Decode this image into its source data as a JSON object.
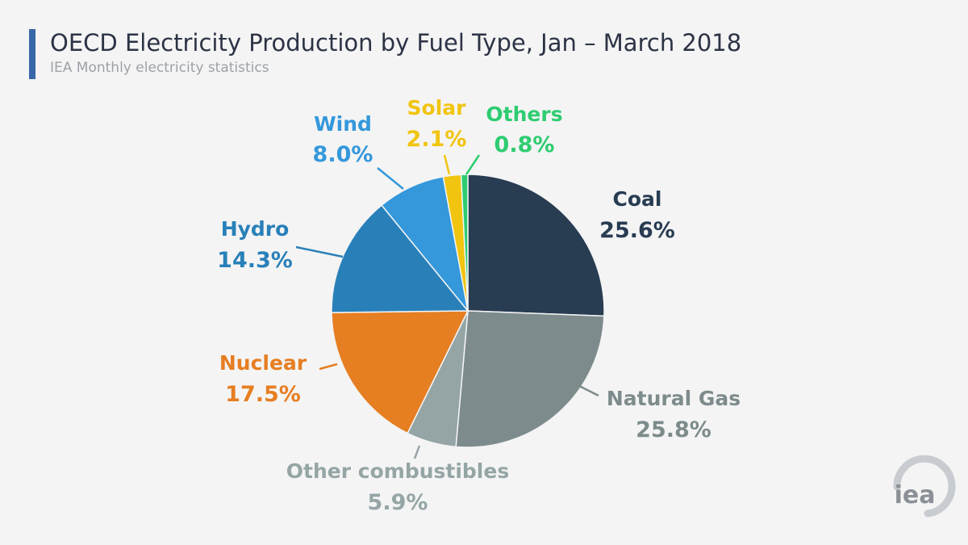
{
  "header": {
    "title": "OECD Electricity Production by Fuel Type, Jan – March 2018",
    "subtitle": "IEA Monthly electricity statistics"
  },
  "logo": {
    "text": "iea",
    "color": "#8a9096"
  },
  "chart_data": {
    "type": "pie",
    "title": "OECD Electricity Production by Fuel Type, Jan – March 2018",
    "subtitle": "IEA Monthly electricity statistics",
    "unit": "%",
    "start_angle_deg": 0,
    "direction": "clockwise",
    "slices": [
      {
        "name": "Coal",
        "value": 25.6,
        "value_label": "25.6%",
        "color": "#283c52"
      },
      {
        "name": "Natural Gas",
        "value": 25.8,
        "value_label": "25.8%",
        "color": "#7d8b8c"
      },
      {
        "name": "Other combustibles",
        "value": 5.9,
        "value_label": "5.9%",
        "color": "#95a5a6"
      },
      {
        "name": "Nuclear",
        "value": 17.5,
        "value_label": "17.5%",
        "color": "#e67e22"
      },
      {
        "name": "Hydro",
        "value": 14.3,
        "value_label": "14.3%",
        "color": "#2980b9"
      },
      {
        "name": "Wind",
        "value": 8.0,
        "value_label": "8.0%",
        "color": "#3498db"
      },
      {
        "name": "Solar",
        "value": 2.1,
        "value_label": "2.1%",
        "color": "#f1c40f"
      },
      {
        "name": "Others",
        "value": 0.8,
        "value_label": "0.8%",
        "color": "#2ecc71"
      }
    ]
  }
}
